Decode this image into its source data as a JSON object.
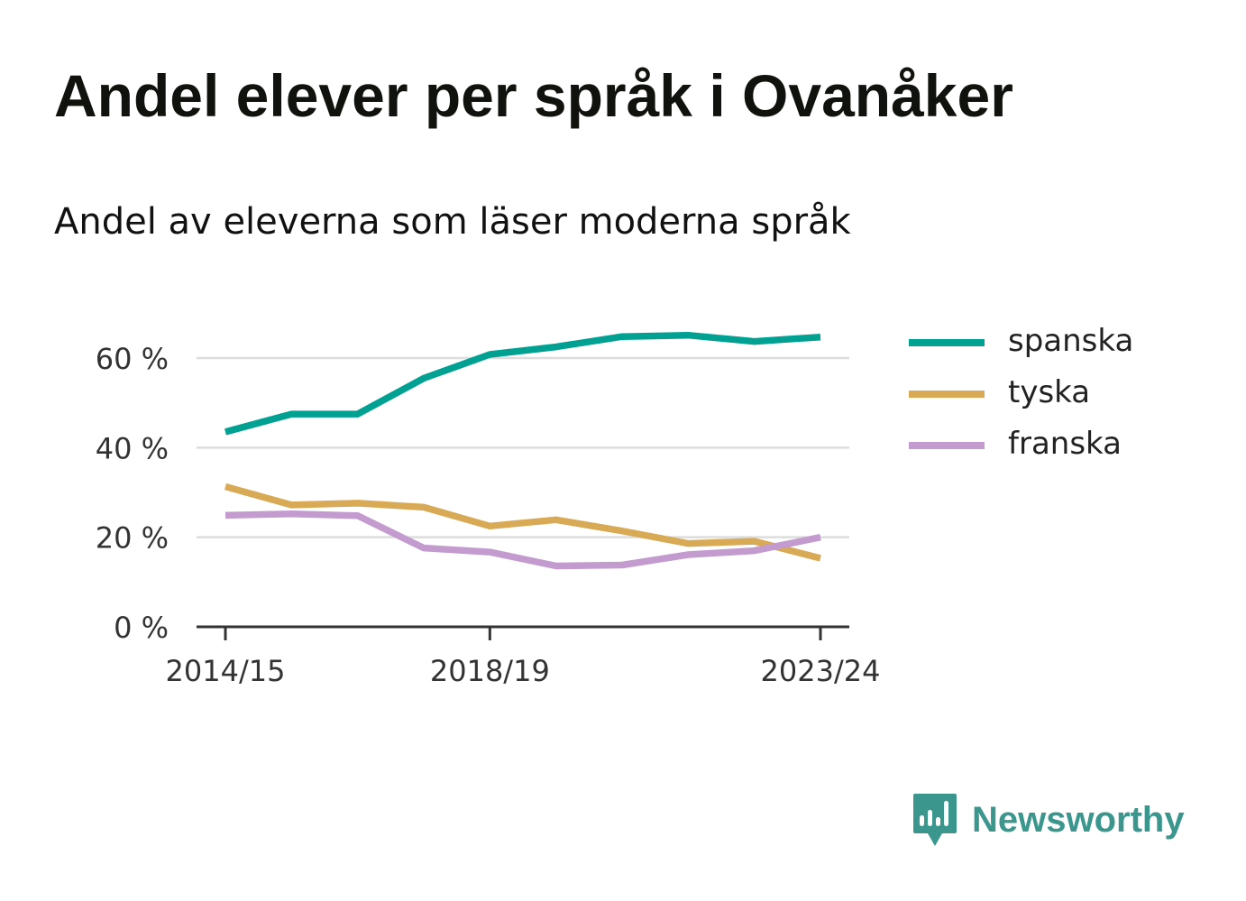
{
  "header": {
    "title": "Andel elever per språk i Ovanåker",
    "subtitle": "Andel av eleverna som läser moderna språk"
  },
  "logo": {
    "text": "Newsworthy",
    "color": "#3b968e",
    "icon": "newsworthy-bar-chart-icon"
  },
  "chart_data": {
    "type": "line",
    "title": "Andel elever per språk i Ovanåker",
    "subtitle": "Andel av eleverna som läser moderna språk",
    "xlabel": "",
    "ylabel": "",
    "x": [
      "2014/15",
      "2015/16",
      "2016/17",
      "2017/18",
      "2018/19",
      "2019/20",
      "2020/21",
      "2021/22",
      "2022/23",
      "2023/24"
    ],
    "x_tick_labels": [
      "2014/15",
      "2018/19",
      "2023/24"
    ],
    "y_ticks": [
      0,
      20,
      40,
      60
    ],
    "y_tick_labels": [
      "0 %",
      "20 %",
      "40 %",
      "60 %"
    ],
    "ylim": [
      0,
      68
    ],
    "grid": true,
    "legend_position": "right",
    "series": [
      {
        "name": "spanska",
        "color": "#00a093",
        "values": [
          43.5,
          47.5,
          47.5,
          55.5,
          60.8,
          62.5,
          64.8,
          65.1,
          63.7,
          64.7
        ]
      },
      {
        "name": "tyska",
        "color": "#d9aa55",
        "values": [
          31.3,
          27.2,
          27.6,
          26.7,
          22.5,
          23.9,
          21.4,
          18.6,
          19.1,
          15.3
        ]
      },
      {
        "name": "franska",
        "color": "#c39bcf",
        "values": [
          24.9,
          25.2,
          24.8,
          17.6,
          16.7,
          13.6,
          13.8,
          16.1,
          17.0,
          20.0
        ]
      }
    ]
  }
}
